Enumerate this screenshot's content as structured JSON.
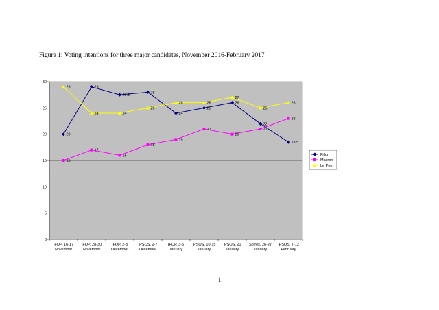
{
  "caption": "Figure 1: Voting intentions for three major candidates, November 2016-February 2017",
  "page_number": "1",
  "chart_data": {
    "type": "line",
    "title": "",
    "xlabel": "",
    "ylabel": "",
    "ylim": [
      0,
      30
    ],
    "yticks": [
      "0",
      "5",
      "10",
      "15",
      "20",
      "25",
      "30"
    ],
    "grid": true,
    "legend_position": "right",
    "plot_background": "#c0c0c0",
    "categories": [
      [
        "IFOP, 16-17",
        "November"
      ],
      [
        "IFOP, 28-30",
        "November"
      ],
      [
        "IFOP, 2-3",
        "December"
      ],
      [
        "IPSOS, 2-7",
        "December"
      ],
      [
        "IFOP, 3-5",
        "January"
      ],
      [
        "IPSOS, 10-15",
        "January"
      ],
      [
        "IPSOS, 20",
        "January"
      ],
      [
        "Sofres, 26-27",
        "January"
      ],
      [
        "IPSOS, 7-12",
        "February"
      ]
    ],
    "series": [
      {
        "name": "Fillon",
        "color": "#000080",
        "marker": "diamond",
        "values": [
          20,
          29,
          27.5,
          28,
          24,
          25,
          26,
          22,
          18.5
        ],
        "labels": [
          "20",
          "29",
          "27.5",
          "28",
          "24",
          "25",
          "26",
          "22",
          "18.5"
        ]
      },
      {
        "name": "Macron",
        "color": "#ff00ff",
        "marker": "square",
        "values": [
          15,
          17,
          16,
          18,
          19,
          21,
          20,
          21,
          23
        ],
        "labels": [
          "15",
          "17",
          "16",
          "18",
          "19",
          "21",
          "20",
          "21",
          "23"
        ]
      },
      {
        "name": "Le Pen",
        "color": "#ffff00",
        "marker": "triangle",
        "values": [
          29,
          24,
          24,
          25,
          26,
          26,
          27,
          25,
          26
        ],
        "labels": [
          "29",
          "24",
          "24",
          "25",
          "26",
          "26",
          "27",
          "25",
          "26"
        ]
      }
    ]
  }
}
